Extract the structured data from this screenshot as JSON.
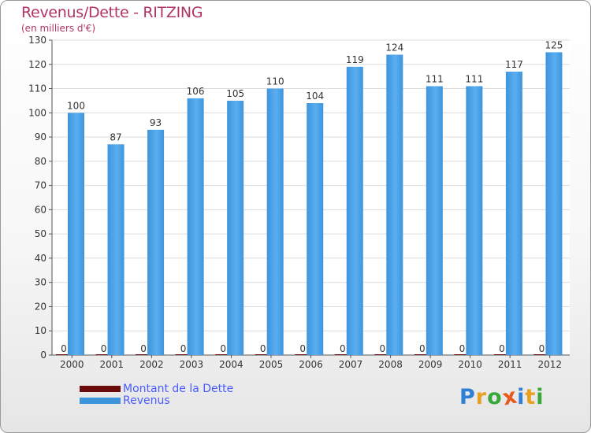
{
  "header": {
    "title": "Revenus/Dette - RITZING",
    "subtitle": "(en milliers d'€)"
  },
  "legend": {
    "items": [
      {
        "label": "Montant de la Dette",
        "color": "#6b0c0c"
      },
      {
        "label": "Revenus",
        "color": "#3d95dd"
      }
    ]
  },
  "logo": {
    "text": "Proxiti",
    "letters": [
      {
        "ch": "P",
        "color": "#2f7fd6"
      },
      {
        "ch": "r",
        "color": "#e8a020"
      },
      {
        "ch": "o",
        "color": "#38a83a"
      },
      {
        "ch": "x",
        "color": "#e85a1c"
      },
      {
        "ch": "i",
        "color": "#2f7fd6"
      },
      {
        "ch": "t",
        "color": "#e8a020"
      },
      {
        "ch": "i",
        "color": "#38a83a"
      }
    ]
  },
  "chart_data": {
    "type": "bar",
    "title": "Revenus/Dette - RITZING",
    "ylabel": "(en milliers d'€)",
    "xlabel": "",
    "categories": [
      "2000",
      "2001",
      "2002",
      "2003",
      "2004",
      "2005",
      "2006",
      "2007",
      "2008",
      "2009",
      "2010",
      "2011",
      "2012"
    ],
    "series": [
      {
        "name": "Montant de la Dette",
        "color": "#6b0c0c",
        "values": [
          0,
          0,
          0,
          0,
          0,
          0,
          0,
          0,
          0,
          0,
          0,
          0,
          0
        ]
      },
      {
        "name": "Revenus",
        "color": "#3d95dd",
        "values": [
          100,
          87,
          93,
          106,
          105,
          110,
          104,
          119,
          124,
          111,
          111,
          117,
          125
        ]
      }
    ],
    "ylim": [
      0,
      130
    ],
    "yticks": [
      0,
      10,
      20,
      30,
      40,
      50,
      60,
      70,
      80,
      90,
      100,
      110,
      120,
      130
    ],
    "grid": true,
    "legend_position": "bottom-left"
  }
}
